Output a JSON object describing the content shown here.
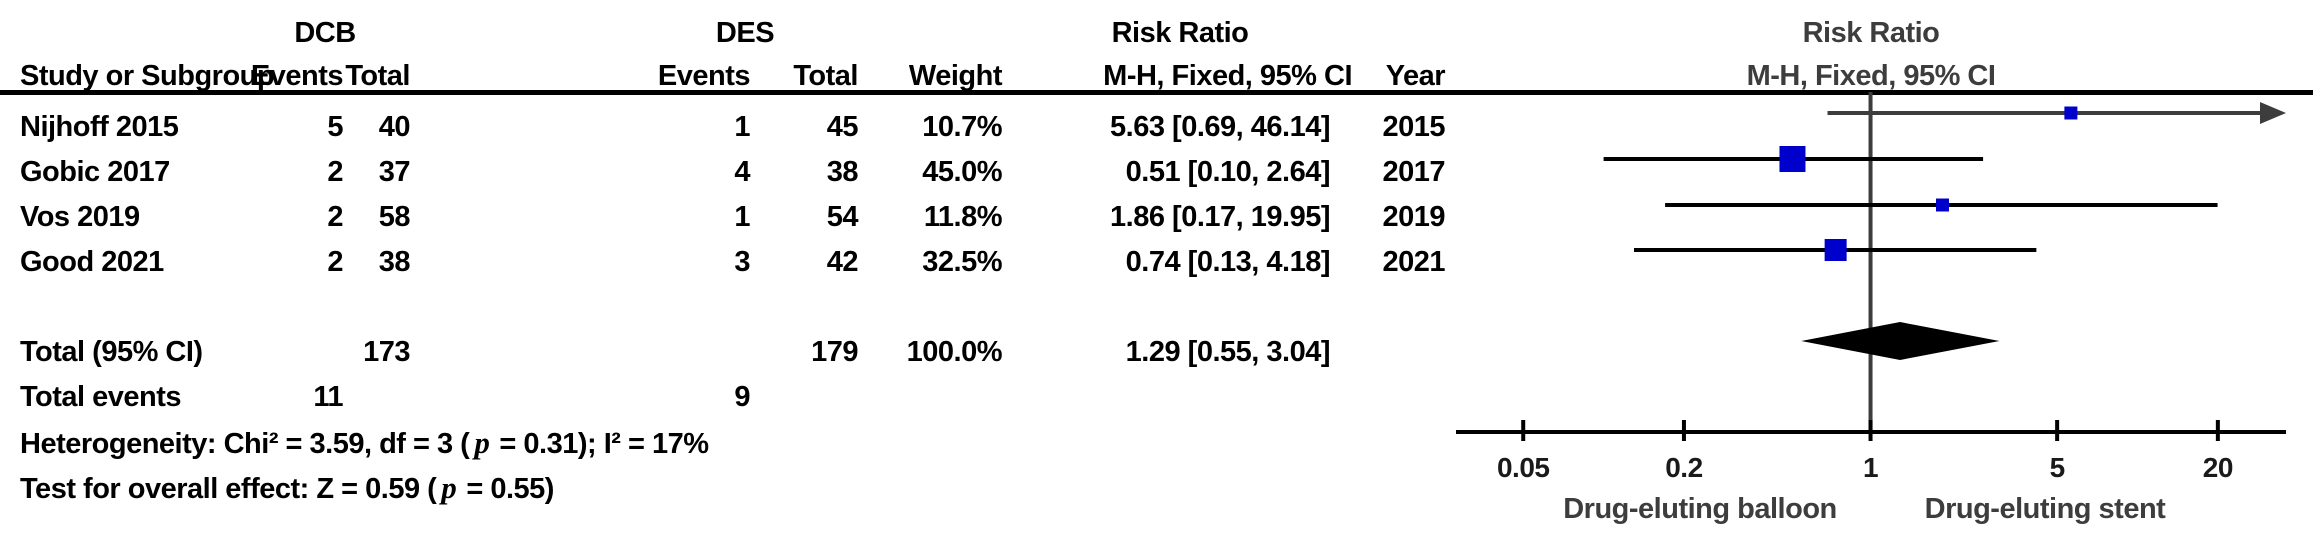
{
  "table": {
    "group1_label": "DCB",
    "group2_label": "DES",
    "rr_header_line1": "Risk Ratio",
    "rr_header_line2": "M-H, Fixed, 95% CI",
    "col_headers": {
      "study": "Study or Subgroup",
      "events": "Events",
      "total": "Total",
      "weight": "Weight",
      "mh": "M-H, Fixed, 95% CI",
      "year": "Year"
    },
    "studies": [
      {
        "name": "Nijhoff 2015",
        "e1": "5",
        "t1": "40",
        "e2": "1",
        "t2": "45",
        "weight": "10.7%",
        "rr_text": "5.63 [0.69, 46.14]",
        "year": "2015"
      },
      {
        "name": "Gobic 2017",
        "e1": "2",
        "t1": "37",
        "e2": "4",
        "t2": "38",
        "weight": "45.0%",
        "rr_text": "0.51 [0.10, 2.64]",
        "year": "2017"
      },
      {
        "name": "Vos 2019",
        "e1": "2",
        "t1": "58",
        "e2": "1",
        "t2": "54",
        "weight": "11.8%",
        "rr_text": "1.86 [0.17, 19.95]",
        "year": "2019"
      },
      {
        "name": "Good 2021",
        "e1": "2",
        "t1": "38",
        "e2": "3",
        "t2": "42",
        "weight": "32.5%",
        "rr_text": "0.74 [0.13, 4.18]",
        "year": "2021"
      }
    ],
    "total": {
      "label": "Total (95% CI)",
      "t1": "173",
      "t2": "179",
      "weight": "100.0%",
      "rr_text": "1.29 [0.55, 3.04]"
    },
    "total_events": {
      "label": "Total events",
      "e1": "11",
      "e2": "9"
    },
    "heterogeneity": {
      "parts": [
        {
          "t": "Heterogeneity: Chi² = 3.59, df = 3 ("
        },
        {
          "t": "p"
        },
        {
          "t": " = 0.31); I² = 17%"
        }
      ]
    },
    "overall": {
      "parts": [
        {
          "t": "Test for overall effect: Z = 0.59 ("
        },
        {
          "t": "p"
        },
        {
          "t": " = 0.55)"
        }
      ]
    }
  },
  "chart_data": {
    "type": "scatter",
    "subtype": "forest-plot",
    "title": "Risk Ratio",
    "subtitle": "M-H, Fixed, 95% CI",
    "x_scale": "log",
    "x_min": 0.028,
    "x_max": 36,
    "null_line": 1,
    "ticks": [
      0.05,
      0.2,
      1,
      5,
      20
    ],
    "x_axis_label_left": "Drug-eluting balloon",
    "x_axis_label_right": "Drug-eluting stent",
    "studies": [
      {
        "name": "Nijhoff 2015",
        "rr": 5.63,
        "ci_low": 0.69,
        "ci_high": 46.14,
        "weight_pct": 10.7
      },
      {
        "name": "Gobic 2017",
        "rr": 0.51,
        "ci_low": 0.1,
        "ci_high": 2.64,
        "weight_pct": 45.0
      },
      {
        "name": "Vos 2019",
        "rr": 1.86,
        "ci_low": 0.17,
        "ci_high": 19.95,
        "weight_pct": 11.8
      },
      {
        "name": "Good 2021",
        "rr": 0.74,
        "ci_low": 0.13,
        "ci_high": 4.18,
        "weight_pct": 32.5
      }
    ],
    "total": {
      "name": "Total (95% CI)",
      "rr": 1.29,
      "ci_low": 0.55,
      "ci_high": 3.04
    },
    "colors": {
      "marker": "#0000cc",
      "diamond": "#000000",
      "line": "#000000",
      "muted": "#3d3d3d"
    }
  }
}
